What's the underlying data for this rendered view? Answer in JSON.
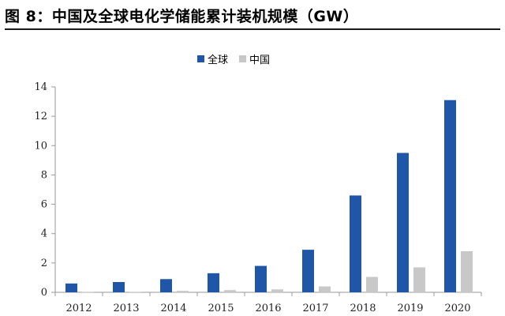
{
  "chart_data": {
    "type": "bar",
    "title": "图 8：中国及全球电化学储能累计装机规模（GW）",
    "categories": [
      "2012",
      "2013",
      "2014",
      "2015",
      "2016",
      "2017",
      "2018",
      "2019",
      "2020"
    ],
    "series": [
      {
        "name": "全球",
        "color": "#1f56a8",
        "values": [
          0.6,
          0.7,
          0.9,
          1.3,
          1.8,
          2.9,
          6.6,
          9.5,
          13.1
        ]
      },
      {
        "name": "中国",
        "color": "#c8c8c8",
        "values": [
          0.02,
          0.03,
          0.1,
          0.15,
          0.2,
          0.4,
          1.05,
          1.7,
          2.8
        ]
      }
    ],
    "ylim": [
      0,
      14
    ],
    "yticks": [
      0,
      2,
      4,
      6,
      8,
      10,
      12,
      14
    ],
    "xlabel": "",
    "ylabel": "",
    "legend_position": "top-center",
    "grid": false
  }
}
